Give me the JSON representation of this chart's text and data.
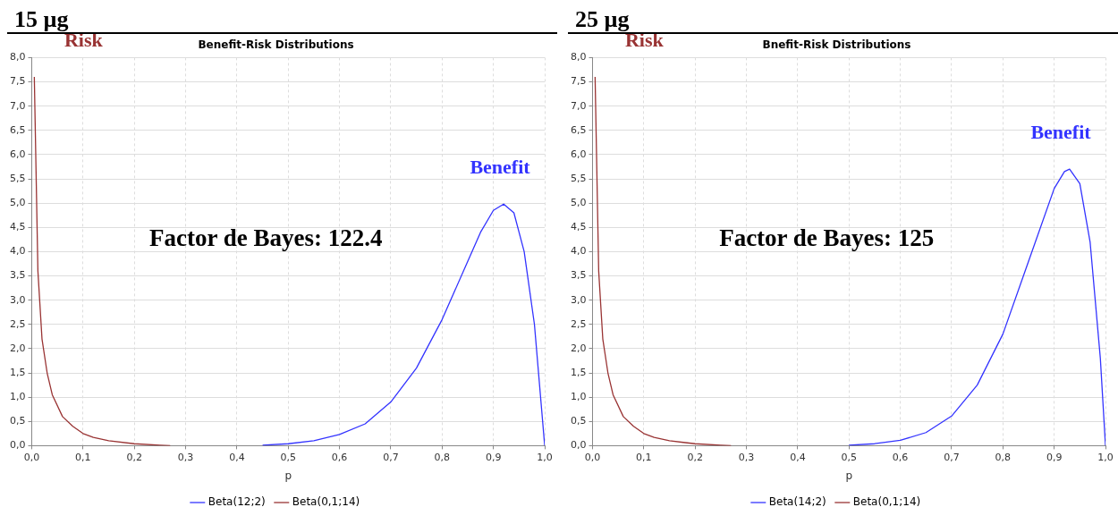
{
  "chart_data": [
    {
      "type": "line",
      "title": "Benefit-Risk Distributions",
      "xlabel": "p",
      "annotations": [
        "15 µg",
        "Benefit",
        "Risk",
        "Factor de Bayes: 122.4"
      ],
      "series": [
        {
          "name": "Beta(12;2)",
          "color": "#3333ff",
          "x": [
            0.45,
            0.5,
            0.55,
            0.6,
            0.65,
            0.7,
            0.75,
            0.8,
            0.85,
            0.875,
            0.9,
            0.92,
            0.94,
            0.96,
            0.98,
            1.0
          ],
          "values": [
            0.01,
            0.04,
            0.1,
            0.23,
            0.45,
            0.9,
            1.6,
            2.6,
            3.8,
            4.4,
            4.85,
            4.98,
            4.8,
            4.0,
            2.5,
            0
          ]
        },
        {
          "name": "Beta(0,1;14)",
          "color": "#993333",
          "x": [
            0.005,
            0.012,
            0.02,
            0.03,
            0.04,
            0.06,
            0.08,
            0.1,
            0.12,
            0.15,
            0.2,
            0.25,
            0.27
          ],
          "values": [
            7.6,
            3.6,
            2.2,
            1.5,
            1.05,
            0.6,
            0.4,
            0.25,
            0.17,
            0.1,
            0.04,
            0.01,
            0
          ]
        }
      ],
      "xlim": [
        0,
        1
      ],
      "xticks": [
        {
          "value": 0,
          "label": "0,0"
        },
        {
          "value": 0.1,
          "label": "0,1"
        },
        {
          "value": 0.2,
          "label": "0,2"
        },
        {
          "value": 0.3,
          "label": "0,3"
        },
        {
          "value": 0.4,
          "label": "0,4"
        },
        {
          "value": 0.5,
          "label": "0,5"
        },
        {
          "value": 0.6,
          "label": "0,6"
        },
        {
          "value": 0.7,
          "label": "0,7"
        },
        {
          "value": 0.8,
          "label": "0,8"
        },
        {
          "value": 0.9,
          "label": "0,9"
        },
        {
          "value": 1,
          "label": "1,0"
        }
      ],
      "ylim": [
        0,
        8
      ],
      "yticks": [
        {
          "value": 0,
          "label": "0,0"
        },
        {
          "value": 0.5,
          "label": "0,5"
        },
        {
          "value": 1,
          "label": "1,0"
        },
        {
          "value": 1.5,
          "label": "1,5"
        },
        {
          "value": 2,
          "label": "2,0"
        },
        {
          "value": 2.5,
          "label": "2,5"
        },
        {
          "value": 3,
          "label": "3,0"
        },
        {
          "value": 3.5,
          "label": "3,5"
        },
        {
          "value": 4,
          "label": "4,0"
        },
        {
          "value": 4.5,
          "label": "4,5"
        },
        {
          "value": 5,
          "label": "5,0"
        },
        {
          "value": 5.5,
          "label": "5,5"
        },
        {
          "value": 6,
          "label": "6,0"
        },
        {
          "value": 6.5,
          "label": "6,5"
        },
        {
          "value": 7,
          "label": "7,0"
        },
        {
          "value": 7.5,
          "label": "7,5"
        },
        {
          "value": 8,
          "label": "8,0"
        }
      ],
      "grid": true,
      "legend": "bottom",
      "marker": "none",
      "line_style": "solid"
    },
    {
      "type": "line",
      "title": "Bnefit-Risk Distributions",
      "xlabel": "p",
      "annotations": [
        "25 µg",
        "Benefit",
        "Risk",
        "Factor de Bayes: 125"
      ],
      "series": [
        {
          "name": "Beta(14;2)",
          "color": "#3333ff",
          "x": [
            0.5,
            0.55,
            0.6,
            0.65,
            0.7,
            0.75,
            0.8,
            0.85,
            0.9,
            0.92,
            0.93,
            0.95,
            0.97,
            0.99,
            1.0
          ],
          "values": [
            0.01,
            0.04,
            0.11,
            0.27,
            0.61,
            1.25,
            2.3,
            3.8,
            5.3,
            5.65,
            5.7,
            5.4,
            4.2,
            1.8,
            0
          ]
        },
        {
          "name": "Beta(0,1;14)",
          "color": "#993333",
          "x": [
            0.005,
            0.012,
            0.02,
            0.03,
            0.04,
            0.06,
            0.08,
            0.1,
            0.12,
            0.15,
            0.2,
            0.25,
            0.27
          ],
          "values": [
            7.6,
            3.6,
            2.2,
            1.5,
            1.05,
            0.6,
            0.4,
            0.25,
            0.17,
            0.1,
            0.04,
            0.01,
            0
          ]
        }
      ],
      "xlim": [
        0,
        1
      ],
      "xticks": [
        {
          "value": 0,
          "label": "0,0"
        },
        {
          "value": 0.1,
          "label": "0,1"
        },
        {
          "value": 0.2,
          "label": "0,2"
        },
        {
          "value": 0.3,
          "label": "0,3"
        },
        {
          "value": 0.4,
          "label": "0,4"
        },
        {
          "value": 0.5,
          "label": "0,5"
        },
        {
          "value": 0.6,
          "label": "0,6"
        },
        {
          "value": 0.7,
          "label": "0,7"
        },
        {
          "value": 0.8,
          "label": "0,8"
        },
        {
          "value": 0.9,
          "label": "0,9"
        },
        {
          "value": 1,
          "label": "1,0"
        }
      ],
      "ylim": [
        0,
        8
      ],
      "yticks": [
        {
          "value": 0,
          "label": "0,0"
        },
        {
          "value": 0.5,
          "label": "0,5"
        },
        {
          "value": 1,
          "label": "1,0"
        },
        {
          "value": 1.5,
          "label": "1,5"
        },
        {
          "value": 2,
          "label": "2,0"
        },
        {
          "value": 2.5,
          "label": "2,5"
        },
        {
          "value": 3,
          "label": "3,0"
        },
        {
          "value": 3.5,
          "label": "3,5"
        },
        {
          "value": 4,
          "label": "4,0"
        },
        {
          "value": 4.5,
          "label": "4,5"
        },
        {
          "value": 5,
          "label": "5,0"
        },
        {
          "value": 5.5,
          "label": "5,5"
        },
        {
          "value": 6,
          "label": "6,0"
        },
        {
          "value": 6.5,
          "label": "6,5"
        },
        {
          "value": 7,
          "label": "7,0"
        },
        {
          "value": 7.5,
          "label": "7,5"
        },
        {
          "value": 8,
          "label": "8,0"
        }
      ],
      "grid": true,
      "legend": "bottom",
      "marker": "none",
      "line_style": "solid"
    }
  ]
}
